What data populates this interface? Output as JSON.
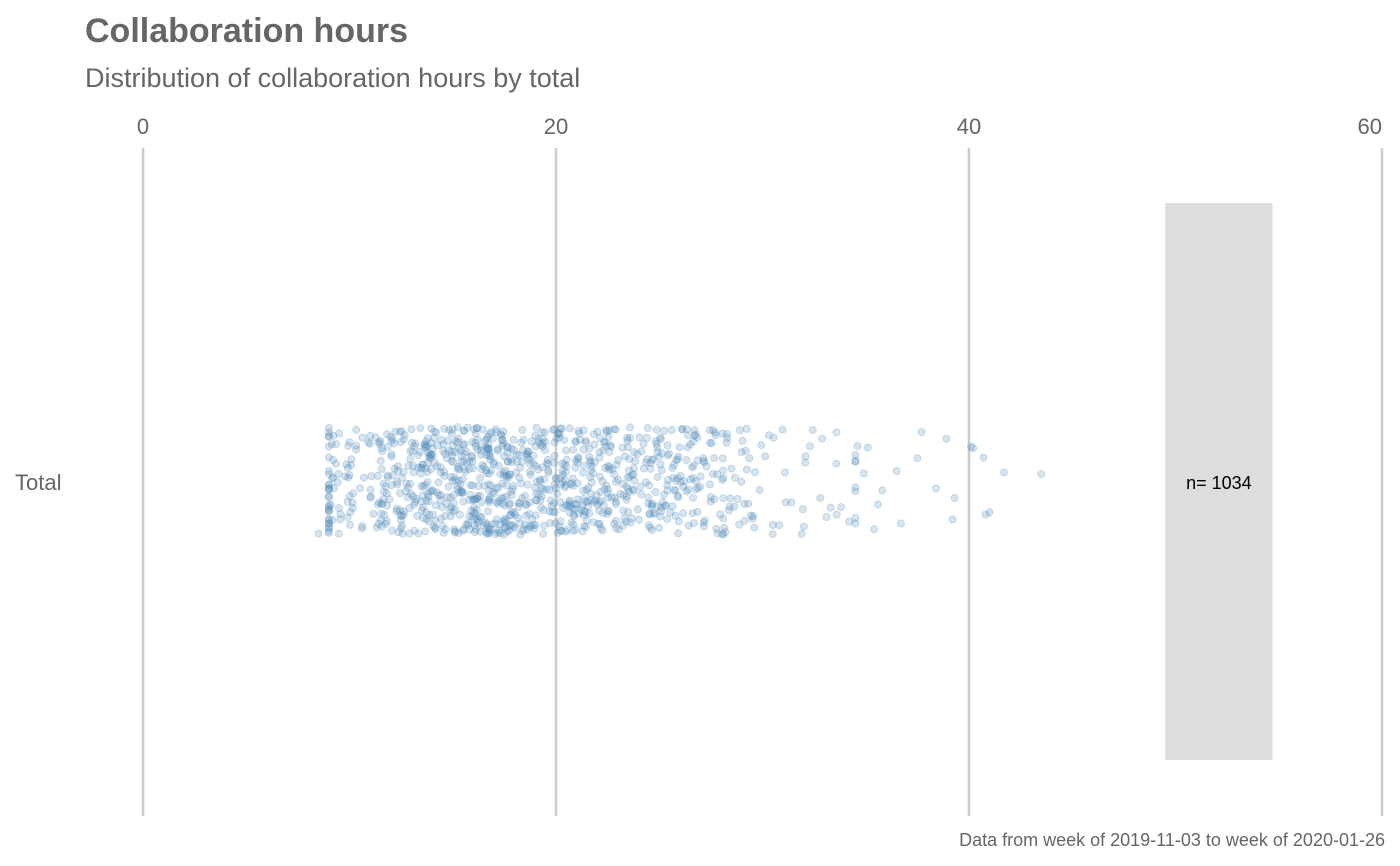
{
  "chart_data": {
    "type": "scatter",
    "title": "Collaboration hours",
    "subtitle": "Distribution of collaboration hours by total",
    "caption": "Data from week of 2019-11-03 to week of 2020-01-26",
    "xlim": [
      0,
      60
    ],
    "x_ticks": [
      "0",
      "20",
      "40",
      "60"
    ],
    "x_tick_values": [
      0,
      20,
      40,
      60
    ],
    "grid": true,
    "categories": [
      "Total"
    ],
    "point_color": "#4682B4",
    "point_opacity": 0.22,
    "n_box_color": "#DDDDDD",
    "n_label": "n= 1034",
    "n_box_range": [
      49.5,
      54.7
    ],
    "series": [
      {
        "category": "Total",
        "count": 1034,
        "min": 8.5,
        "max": 43.5,
        "median": 19.0,
        "outliers": [
          43.5,
          41.7,
          41.0,
          40.8,
          40.7,
          40.2,
          40.1,
          39.3,
          39.2,
          38.9,
          38.4,
          37.7,
          37.5,
          36.7,
          36.5,
          35.8,
          35.6,
          35.4,
          35.1,
          34.9,
          34.6,
          34.2,
          33.8,
          33.3,
          33.1,
          32.8,
          32.3,
          31.9,
          8.5,
          9.2,
          9.5,
          9.8
        ]
      }
    ]
  }
}
